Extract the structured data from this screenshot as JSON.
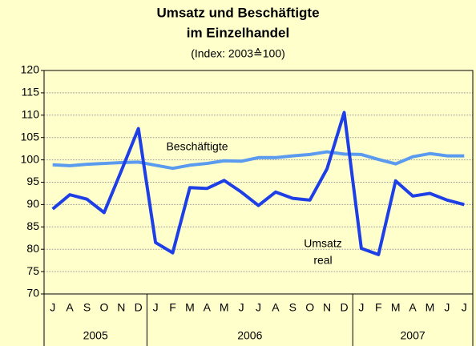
{
  "chart_data": {
    "type": "line",
    "title": "Umsatz und Beschäftigte",
    "title2": "im Einzelhandel",
    "subtitle": "(Index: 2003≙100)",
    "categories": [
      "J",
      "A",
      "S",
      "O",
      "N",
      "D",
      "J",
      "F",
      "M",
      "A",
      "M",
      "J",
      "J",
      "A",
      "S",
      "O",
      "N",
      "D",
      "J",
      "F",
      "M",
      "A",
      "M",
      "J",
      "J"
    ],
    "year_groups": [
      "2005",
      "2006",
      "2007"
    ],
    "series": [
      {
        "name": "Beschäftigte",
        "color": "#5B9BEF",
        "values": [
          98.9,
          98.7,
          99,
          99.2,
          99.4,
          99.5,
          98.8,
          98.1,
          98.8,
          99.2,
          99.8,
          99.7,
          100.5,
          100.5,
          100.9,
          101.2,
          101.8,
          101.3,
          101.2,
          100.1,
          99.1,
          100.7,
          101.4,
          100.9,
          100.9
        ]
      },
      {
        "name": "Umsatz real",
        "color": "#1F3FE6",
        "values": [
          89,
          92.2,
          91.2,
          88.2,
          97.5,
          107,
          81.5,
          79.2,
          93.8,
          93.6,
          95.4,
          92.8,
          89.8,
          92.8,
          91.4,
          91,
          98,
          110.6,
          80.2,
          78.8,
          95.3,
          91.9,
          92.5,
          91,
          90
        ]
      }
    ],
    "annotations": [
      "Beschäftigte",
      "Umsatz",
      "real"
    ],
    "ylim": [
      70,
      120
    ],
    "yticks": [
      70,
      75,
      80,
      85,
      90,
      95,
      100,
      105,
      110,
      115,
      120
    ],
    "grid": true
  }
}
